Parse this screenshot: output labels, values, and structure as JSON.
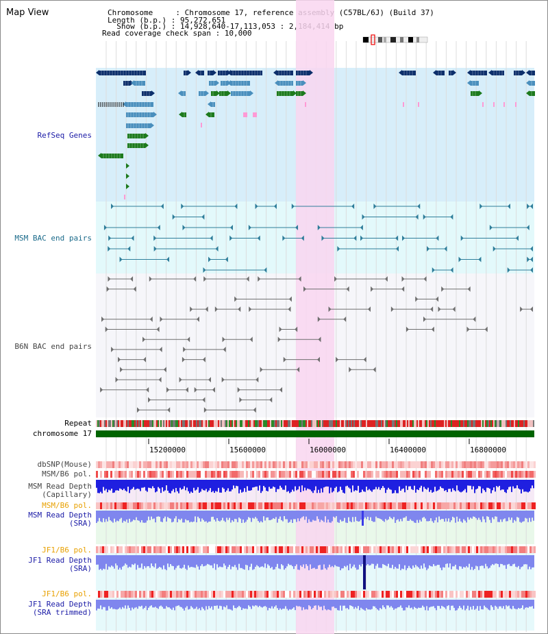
{
  "title": "Map View",
  "info": {
    "chromosome_line": "Chromosome     : Chromosome 17, reference assembly (C57BL/6J) (Build 37)",
    "length_line": "Length (b.p.) : 95,272,651",
    "show_line": "  Show (b.p.) : 14,928,640-17,113,053 : 2,184,414 bp",
    "coverage_line": "Read coverage check span : 10,000"
  },
  "tracks": {
    "refseq": "RefSeq Genes",
    "msm_bac": "MSM BAC end pairs",
    "b6n_bac": "B6N BAC end pairs",
    "repeat": "Repeat",
    "chromosome": "chromosome 17",
    "dbsnp": "dbSNP(Mouse)",
    "msm_b6_pol": "MSM/B6 pol.",
    "msm_depth_cap": "MSM Read Depth\n(Capillary)",
    "msm_b6_pol_2": "MSM/B6 pol.",
    "msm_depth_sra": "MSM Read Depth\n(SRA)",
    "jf1_b6_pol": "JF1/B6 pol.",
    "jf1_depth_sra": "JF1 Read Depth\n(SRA)",
    "jf1_b6_pol_2": "JF1/B6 pol.",
    "jf1_depth_trim": "JF1 Read Depth\n(SRA trimmed)"
  },
  "axis": {
    "ticks": [
      "15200000",
      "15600000",
      "16000000",
      "16400000",
      "16800000"
    ]
  },
  "colors": {
    "highlight": "#f9d6f0",
    "refseq_bg": "#d7eefa",
    "msm_bg": "#e3f9fb",
    "b6n_bg": "#f6f6fa",
    "chrom_bar": "#006400",
    "gene_dark": "#0d2f6b",
    "gene_mid": "#4a8fbd",
    "gene_green": "#1d7a1d",
    "depth_blue": "#1f1fe0",
    "depth_lavender": "#7f86ee"
  }
}
